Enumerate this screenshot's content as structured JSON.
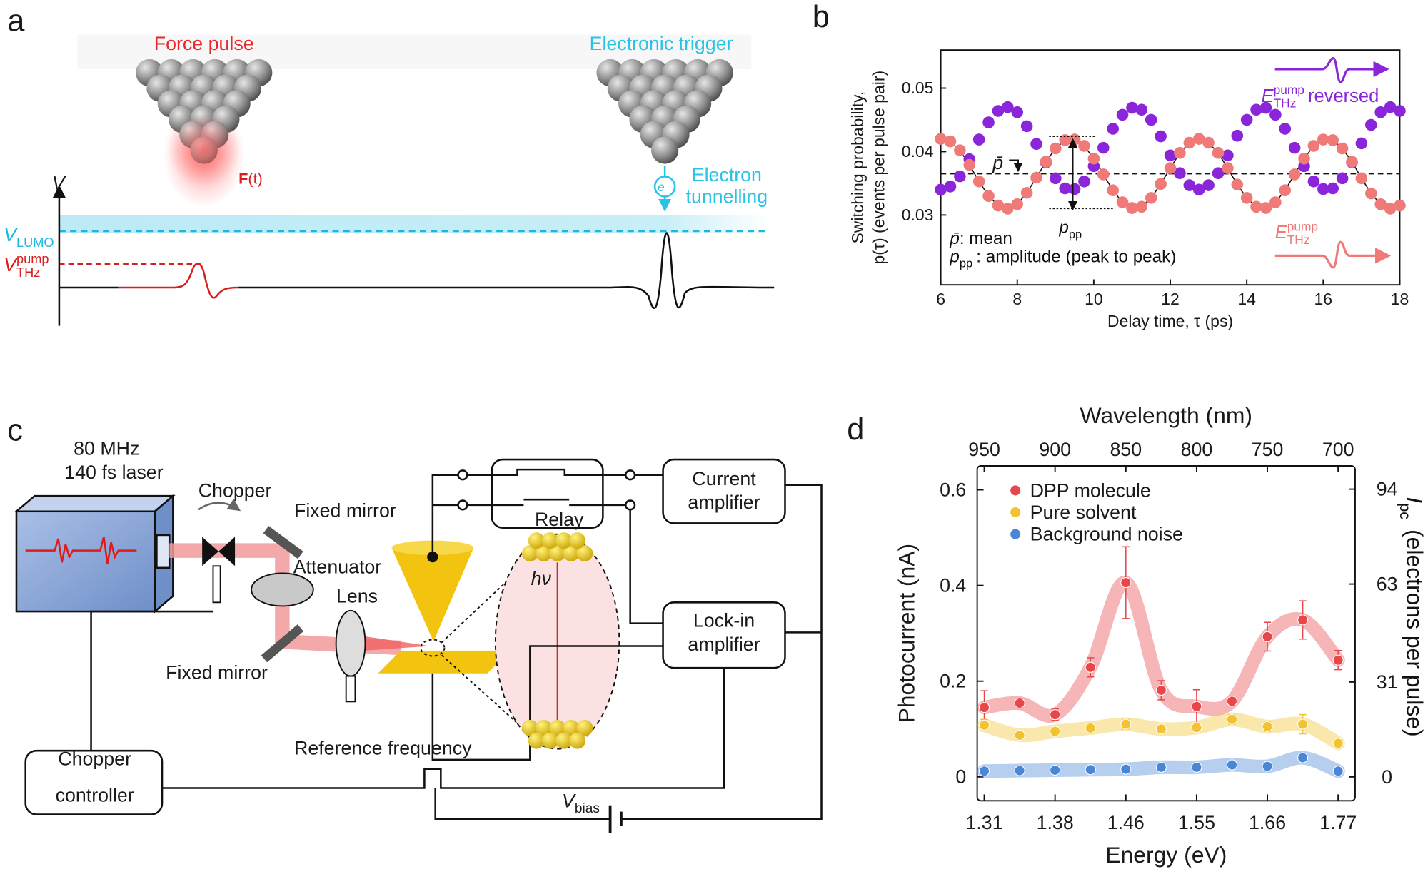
{
  "panels": {
    "a": {
      "label": "a",
      "force_pulse": "Force pulse",
      "trigger": "Electronic trigger",
      "force": {
        "symbol": "F",
        "arg": "(t)"
      },
      "axis": "V",
      "lumo": {
        "symbol": "V",
        "sub": "LUMO"
      },
      "pump": {
        "symbol": "V",
        "sup": "pump",
        "sub": "THz"
      },
      "electron": {
        "symbol": "e",
        "sup": "−"
      },
      "tunnelling": [
        "Electron",
        "tunnelling"
      ]
    },
    "c": {
      "label": "c",
      "laser": [
        "80 MHz",
        "140 fs laser"
      ],
      "chopper": "Chopper",
      "mirror_top": "Fixed mirror",
      "attenuator": "Attenuator",
      "lens": "Lens",
      "mirror_bottom": "Fixed mirror",
      "relay": "Relay",
      "current_amp": [
        "Current",
        "amplifier"
      ],
      "lockin": [
        "Lock-in",
        "amplifier"
      ],
      "controller": [
        "Chopper",
        "controller"
      ],
      "reference": "Reference frequency",
      "vbias": {
        "symbol": "V",
        "sub": "bias"
      },
      "photon": "hν"
    }
  },
  "chart_data": [
    {
      "type": "scatter",
      "label": "b",
      "xlabel": "Delay time, τ (ps)",
      "ylabel": [
        "Switching probability,",
        "p(τ) (events per pulse pair)"
      ],
      "xlim": [
        6,
        18
      ],
      "xticks": [
        6,
        8,
        10,
        12,
        14,
        16,
        18
      ],
      "ylim": [
        0.019,
        0.056
      ],
      "yticks": [
        0.03,
        0.04,
        0.05
      ],
      "x": [
        6,
        6.25,
        6.5,
        6.75,
        7,
        7.25,
        7.5,
        7.75,
        8,
        8.25,
        8.5,
        8.75,
        9,
        9.25,
        9.5,
        9.75,
        10,
        10.25,
        10.5,
        10.75,
        11,
        11.25,
        11.5,
        11.75,
        12,
        12.25,
        12.5,
        12.75,
        13,
        13.25,
        13.5,
        13.75,
        14,
        14.25,
        14.5,
        14.75,
        15,
        15.25,
        15.5,
        15.75,
        16,
        16.25,
        16.5,
        16.75,
        17,
        17.25,
        17.5,
        17.75,
        18
      ],
      "series": [
        {
          "color": "#ef7a78",
          "label": {
            "symbol": "E",
            "sup": "pump",
            "sub": "THz"
          },
          "values": [
            0.042,
            0.0416,
            0.0402,
            0.0379,
            0.0353,
            0.033,
            0.0315,
            0.031,
            0.0317,
            0.0335,
            0.0359,
            0.0384,
            0.0405,
            0.0418,
            0.0419,
            0.0409,
            0.0389,
            0.0364,
            0.0339,
            0.032,
            0.0311,
            0.0313,
            0.0327,
            0.0349,
            0.0374,
            0.0398,
            0.0414,
            0.042,
            0.0414,
            0.0398,
            0.0374,
            0.0348,
            0.0327,
            0.0313,
            0.0311,
            0.032,
            0.0339,
            0.0364,
            0.0389,
            0.0409,
            0.0419,
            0.0418,
            0.0405,
            0.0384,
            0.0358,
            0.0334,
            0.0317,
            0.031,
            0.0315
          ]
        },
        {
          "color": "#8a25d9",
          "label": {
            "symbol": "E",
            "sup": "pump",
            "sub": "THz",
            "suffix": "reversed"
          },
          "values": [
            0.034,
            0.0345,
            0.0361,
            0.0388,
            0.0419,
            0.0446,
            0.0464,
            0.047,
            0.0462,
            0.044,
            0.0412,
            0.0383,
            0.0358,
            0.0342,
            0.0341,
            0.0353,
            0.0377,
            0.0406,
            0.0436,
            0.0458,
            0.0469,
            0.0466,
            0.045,
            0.0424,
            0.0394,
            0.0366,
            0.0347,
            0.034,
            0.0347,
            0.0366,
            0.0394,
            0.0425,
            0.045,
            0.0466,
            0.0469,
            0.0458,
            0.0436,
            0.0406,
            0.0377,
            0.0353,
            0.0341,
            0.0342,
            0.0358,
            0.0383,
            0.0413,
            0.0442,
            0.0462,
            0.047,
            0.0464
          ]
        }
      ],
      "mean": 0.0365,
      "mean_symbol": "p̄",
      "pp_symbol": {
        "symbol": "p",
        "sub": "pp"
      },
      "notes": [
        {
          "symbol": "p̄",
          "suffix": ": mean"
        },
        {
          "symbol": "p",
          "sub": "pp",
          "suffix": ": amplitude (peak to peak)"
        }
      ]
    },
    {
      "type": "errorbar",
      "label": "d",
      "xlabel": "Energy (eV)",
      "x2label": "Wavelength (nm)",
      "ylabel": "Photocurrent (nA)",
      "y2label": {
        "symbol": "I",
        "sub": "pc",
        "suffix": " (electrons per pulse)"
      },
      "x": [
        950,
        925,
        900,
        875,
        850,
        825,
        800,
        775,
        750,
        725,
        700
      ],
      "xlim": [
        955,
        688
      ],
      "xticks": [
        {
          "value": 950,
          "label": "1.31"
        },
        {
          "value": 900,
          "label": "1.38"
        },
        {
          "value": 850,
          "label": "1.46"
        },
        {
          "value": 800,
          "label": "1.55"
        },
        {
          "value": 750,
          "label": "1.66"
        },
        {
          "value": 700,
          "label": "1.77"
        }
      ],
      "x2ticks": [
        950,
        900,
        850,
        800,
        750,
        700
      ],
      "ylim": [
        -0.05,
        0.65
      ],
      "yticks": [
        0,
        0.2,
        0.4,
        0.6
      ],
      "y2lim": [
        -7.8,
        101.6
      ],
      "y2ticks": [
        0,
        31,
        63,
        94
      ],
      "legend": "upper left",
      "series": [
        {
          "name": "DPP molecule",
          "color": "#e8474a",
          "values": [
            0.145,
            0.154,
            0.13,
            0.229,
            0.406,
            0.181,
            0.147,
            0.158,
            0.293,
            0.328,
            0.244
          ],
          "errors": [
            0.035,
            0.01,
            0.012,
            0.02,
            0.075,
            0.02,
            0.035,
            0.008,
            0.03,
            0.04,
            0.02
          ]
        },
        {
          "name": "Pure solvent",
          "color": "#f2c230",
          "values": [
            0.108,
            0.087,
            0.095,
            0.102,
            0.11,
            0.1,
            0.103,
            0.12,
            0.105,
            0.11,
            0.07
          ],
          "errors": [
            0.012,
            0.008,
            0.008,
            0.01,
            0.01,
            0.008,
            0.008,
            0.01,
            0.01,
            0.02,
            0.008
          ]
        },
        {
          "name": "Background noise",
          "color": "#4a86d6",
          "values": [
            0.012,
            0.013,
            0.014,
            0.015,
            0.016,
            0.02,
            0.02,
            0.025,
            0.022,
            0.04,
            0.012
          ]
        }
      ]
    }
  ]
}
